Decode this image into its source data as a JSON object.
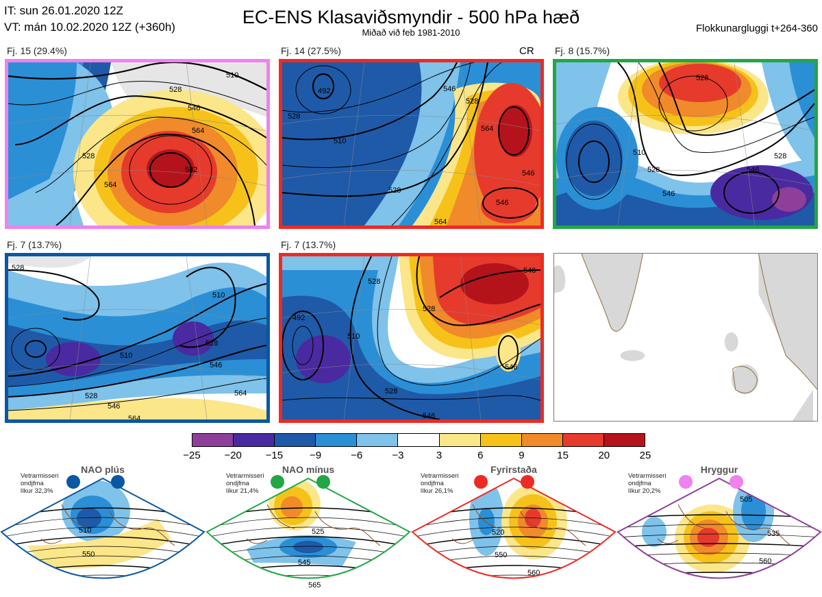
{
  "header": {
    "it_line": "IT: sun 26.01.2020 12Z",
    "vt_line": "VT: mán 10.02.2020 12Z  (+360h)",
    "title": "EC-ENS Klasaviðsmyndir - 500 hPa hæð",
    "subtitle": "Miðað við feb 1981-2010",
    "window": "Flokkunargluggi t+264-360"
  },
  "panels": [
    {
      "label": "Fj. 15 (29.4%)",
      "border_color": "#ee82ee"
    },
    {
      "label": "Fj. 14 (27.5%)",
      "border_color": "#ee2a24",
      "tag": "CR"
    },
    {
      "label": "Fj. 8 (15.7%)",
      "border_color": "#22a744"
    },
    {
      "label": "Fj. 7 (13.7%)",
      "border_color": "#0a57a4"
    },
    {
      "label": "Fj. 7 (13.7%)",
      "border_color": "#ee2a24"
    }
  ],
  "contour_labels": {
    "p1": [
      "510",
      "528",
      "546",
      "564",
      "582",
      "528",
      "564"
    ],
    "p2": [
      "528",
      "492",
      "510",
      "528",
      "546",
      "564",
      "528",
      "546",
      "546",
      "564"
    ],
    "p3": [
      "528",
      "510",
      "528",
      "546",
      "546",
      "528"
    ],
    "p4": [
      "528",
      "510",
      "528",
      "546",
      "510",
      "528",
      "546",
      "564",
      "564"
    ],
    "p5": [
      "546",
      "528",
      "492",
      "510",
      "528",
      "546",
      "528",
      "546"
    ]
  },
  "colorbar": {
    "colors": [
      "#8e3f9a",
      "#4a2aa0",
      "#1e5aa8",
      "#2b8fd6",
      "#7fc2ea",
      "#ffffff",
      "#fbe68a",
      "#f6c21a",
      "#f08a2a",
      "#e63a2c",
      "#b5131c"
    ],
    "ticks": [
      "−25",
      "−20",
      "−15",
      "−9",
      "−6",
      "−3",
      "3",
      "6",
      "9",
      "15",
      "20",
      "25"
    ]
  },
  "regimes": [
    {
      "name": "NAO plús",
      "info": [
        "Vetrarmisseri",
        "ondjfma",
        "líkur 32,3%"
      ],
      "dot_color": "#0a57a4",
      "frame_color": "#0a57a4",
      "labels": [
        "510",
        "550"
      ]
    },
    {
      "name": "NAO mínus",
      "info": [
        "Vetrarmisseri",
        "ondjfma",
        "líkur 21,4%"
      ],
      "dot_color": "#22a744",
      "frame_color": "#22a744",
      "labels": [
        "525",
        "545",
        "565"
      ]
    },
    {
      "name": "Fyrirstaða",
      "info": [
        "Vetrarmisseri",
        "ondjfma",
        "líkur 26,1%"
      ],
      "dot_color": "#ee2a24",
      "frame_color": "#ee2a24",
      "labels": [
        "520",
        "550",
        "560"
      ]
    },
    {
      "name": "Hryggur",
      "info": [
        "Vetrarmisseri",
        "ondjfma",
        "líkur 20,2%"
      ],
      "dot_color": "#ee82ee",
      "frame_color": "#8e3f9a",
      "labels": [
        "505",
        "535",
        "560"
      ]
    }
  ]
}
